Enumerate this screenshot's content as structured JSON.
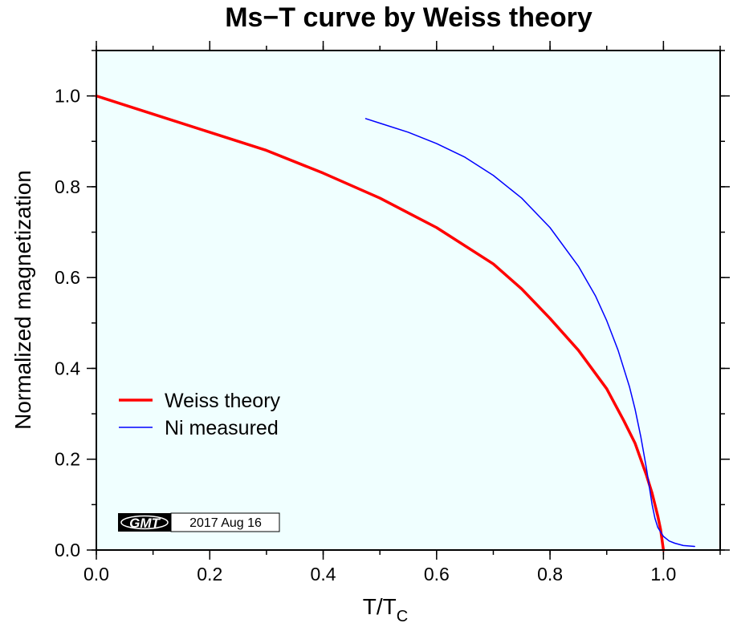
{
  "chart_data": {
    "type": "line",
    "title": "Ms−T curve by Weiss theory",
    "xlabel_main": "T/T",
    "xlabel_sub": "C",
    "ylabel": "Normalized magnetization",
    "xlim": [
      0.0,
      1.1
    ],
    "ylim": [
      0.0,
      1.1
    ],
    "x_ticks": [
      0.0,
      0.2,
      0.4,
      0.6,
      0.8,
      1.0
    ],
    "x_tick_labels": [
      "0.0",
      "0.2",
      "0.4",
      "0.6",
      "0.8",
      "1.0"
    ],
    "y_ticks": [
      0.0,
      0.2,
      0.4,
      0.6,
      0.8,
      1.0
    ],
    "y_tick_labels": [
      "0.0",
      "0.2",
      "0.4",
      "0.6",
      "0.8",
      "1.0"
    ],
    "x_minor_step": 0.1,
    "y_minor_step": 0.1,
    "grid": false,
    "legend_position": "bottom-left",
    "background_color": "#f0ffff",
    "series": [
      {
        "name": "Weiss theory",
        "color": "#ff0000",
        "width": 3.5,
        "x": [
          0.0,
          0.1,
          0.2,
          0.3,
          0.4,
          0.5,
          0.6,
          0.7,
          0.75,
          0.8,
          0.85,
          0.9,
          0.93,
          0.95,
          0.97,
          0.98,
          0.99,
          0.995,
          1.0
        ],
        "y": [
          1.0,
          0.96,
          0.92,
          0.88,
          0.83,
          0.775,
          0.71,
          0.63,
          0.575,
          0.51,
          0.44,
          0.355,
          0.285,
          0.235,
          0.165,
          0.125,
          0.075,
          0.045,
          0.0
        ]
      },
      {
        "name": "Ni measured",
        "color": "#0000ff",
        "width": 1.5,
        "x": [
          0.475,
          0.5,
          0.55,
          0.6,
          0.65,
          0.7,
          0.75,
          0.8,
          0.85,
          0.88,
          0.9,
          0.92,
          0.94,
          0.95,
          0.96,
          0.97,
          0.975,
          0.98,
          0.985,
          0.99,
          0.995,
          1.0,
          1.01,
          1.02,
          1.035,
          1.055
        ],
        "y": [
          0.95,
          0.94,
          0.92,
          0.895,
          0.865,
          0.825,
          0.775,
          0.71,
          0.625,
          0.56,
          0.505,
          0.44,
          0.36,
          0.31,
          0.25,
          0.18,
          0.14,
          0.1,
          0.07,
          0.05,
          0.04,
          0.03,
          0.02,
          0.015,
          0.01,
          0.008
        ]
      }
    ],
    "timestamp": {
      "logo": "GMT",
      "date": "2017 Aug 16"
    }
  }
}
